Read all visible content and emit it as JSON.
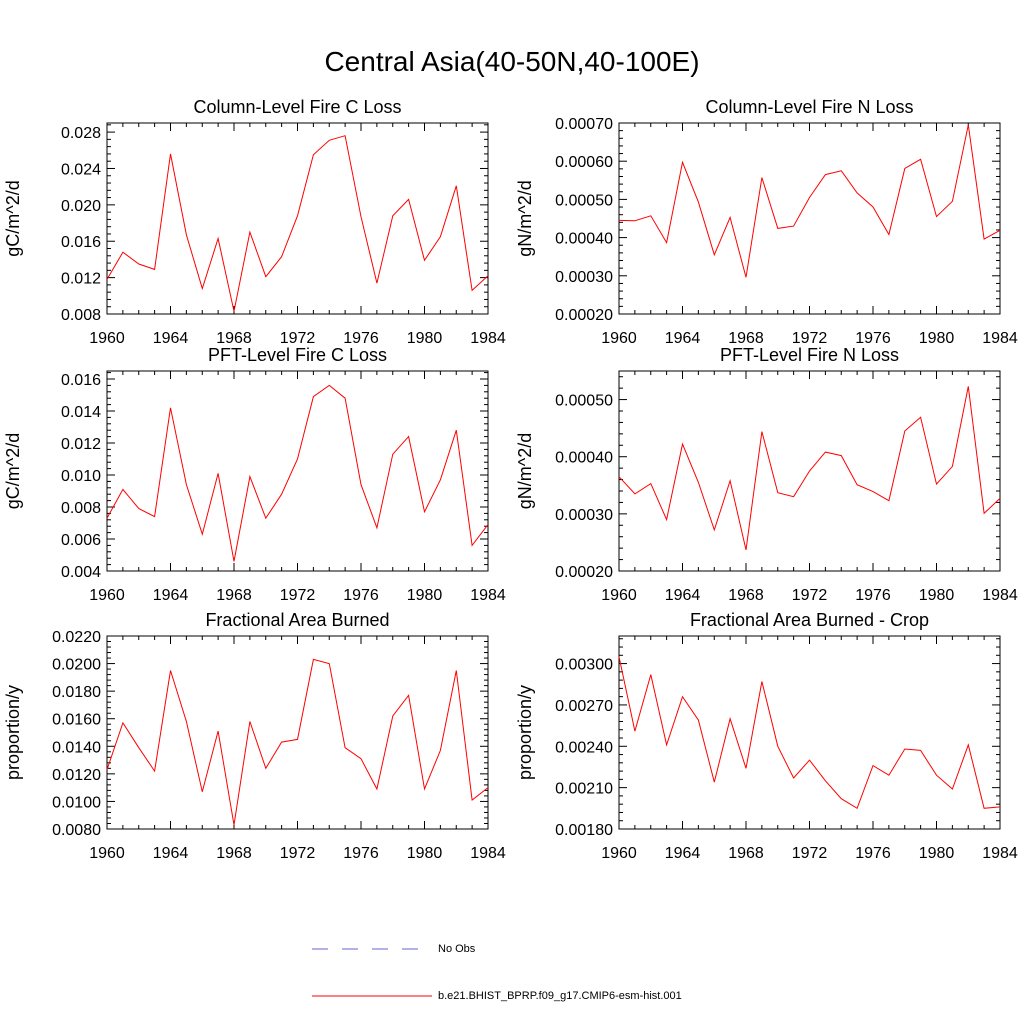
{
  "page": {
    "title": "Central Asia(40-50N,40-100E)"
  },
  "legend": {
    "items": [
      {
        "label": "No Obs",
        "style": "dashed",
        "color": "#6666cc"
      },
      {
        "label": "b.e21.BHIST_BPRP.f09_g17.CMIP6-esm-hist.001",
        "style": "solid",
        "color": "#ff0000"
      }
    ]
  },
  "series_color": "#ff0000",
  "chart_data": [
    {
      "type": "line",
      "title": "Column-Level Fire C Loss",
      "xlabel": "",
      "ylabel": "gC/m^2/d",
      "xlim": [
        1960,
        1984
      ],
      "ylim": [
        0.008,
        0.029
      ],
      "xticks": [
        1960,
        1964,
        1968,
        1972,
        1976,
        1980,
        1984
      ],
      "yticks": [
        "0.008",
        "0.012",
        "0.016",
        "0.020",
        "0.024",
        "0.028"
      ],
      "x": [
        1960,
        1961,
        1962,
        1963,
        1964,
        1965,
        1966,
        1967,
        1968,
        1969,
        1970,
        1971,
        1972,
        1973,
        1974,
        1975,
        1976,
        1977,
        1978,
        1979,
        1980,
        1981,
        1982,
        1983,
        1984
      ],
      "series": [
        {
          "name": "b.e21.BHIST_BPRP.f09_g17.CMIP6-esm-hist.001",
          "values": [
            0.0118,
            0.0148,
            0.0135,
            0.0129,
            0.0256,
            0.0167,
            0.0108,
            0.0163,
            0.0083,
            0.017,
            0.0121,
            0.0143,
            0.0188,
            0.0255,
            0.0271,
            0.0276,
            0.0187,
            0.0114,
            0.0188,
            0.0206,
            0.0139,
            0.0165,
            0.0221,
            0.0106,
            0.0122
          ]
        }
      ]
    },
    {
      "type": "line",
      "title": "Column-Level Fire N Loss",
      "xlabel": "",
      "ylabel": "gN/m^2/d",
      "xlim": [
        1960,
        1984
      ],
      "ylim": [
        0.0002,
        0.0007
      ],
      "xticks": [
        1960,
        1964,
        1968,
        1972,
        1976,
        1980,
        1984
      ],
      "yticks": [
        "0.00020",
        "0.00030",
        "0.00040",
        "0.00050",
        "0.00060",
        "0.00070"
      ],
      "x": [
        1960,
        1961,
        1962,
        1963,
        1964,
        1965,
        1966,
        1967,
        1968,
        1969,
        1970,
        1971,
        1972,
        1973,
        1974,
        1975,
        1976,
        1977,
        1978,
        1979,
        1980,
        1981,
        1982,
        1983,
        1984
      ],
      "series": [
        {
          "name": "b.e21.BHIST_BPRP.f09_g17.CMIP6-esm-hist.001",
          "values": [
            0.000445,
            0.000444,
            0.000457,
            0.000387,
            0.000597,
            0.000493,
            0.000355,
            0.000453,
            0.000296,
            0.000557,
            0.000424,
            0.00043,
            0.000505,
            0.000565,
            0.000575,
            0.000517,
            0.00048,
            0.000408,
            0.000581,
            0.000605,
            0.000455,
            0.000495,
            0.000695,
            0.000396,
            0.000419
          ]
        }
      ]
    },
    {
      "type": "line",
      "title": "PFT-Level Fire C Loss",
      "xlabel": "",
      "ylabel": "gC/m^2/d",
      "xlim": [
        1960,
        1984
      ],
      "ylim": [
        0.004,
        0.0165
      ],
      "xticks": [
        1960,
        1964,
        1968,
        1972,
        1976,
        1980,
        1984
      ],
      "yticks": [
        "0.004",
        "0.006",
        "0.008",
        "0.010",
        "0.012",
        "0.014",
        "0.016"
      ],
      "x": [
        1960,
        1961,
        1962,
        1963,
        1964,
        1965,
        1966,
        1967,
        1968,
        1969,
        1970,
        1971,
        1972,
        1973,
        1974,
        1975,
        1976,
        1977,
        1978,
        1979,
        1980,
        1981,
        1982,
        1983,
        1984
      ],
      "series": [
        {
          "name": "b.e21.BHIST_BPRP.f09_g17.CMIP6-esm-hist.001",
          "values": [
            0.0073,
            0.0091,
            0.0079,
            0.0074,
            0.0142,
            0.0094,
            0.0063,
            0.0101,
            0.0046,
            0.0099,
            0.0073,
            0.0088,
            0.011,
            0.0149,
            0.0156,
            0.0148,
            0.0094,
            0.0067,
            0.0113,
            0.0124,
            0.0077,
            0.0097,
            0.0128,
            0.0056,
            0.0069
          ]
        }
      ]
    },
    {
      "type": "line",
      "title": "PFT-Level Fire N Loss",
      "xlabel": "",
      "ylabel": "gN/m^2/d",
      "xlim": [
        1960,
        1984
      ],
      "ylim": [
        0.0002,
        0.00055
      ],
      "xticks": [
        1960,
        1964,
        1968,
        1972,
        1976,
        1980,
        1984
      ],
      "yticks": [
        "0.00020",
        "0.00030",
        "0.00040",
        "0.00050"
      ],
      "x": [
        1960,
        1961,
        1962,
        1963,
        1964,
        1965,
        1966,
        1967,
        1968,
        1969,
        1970,
        1971,
        1972,
        1973,
        1974,
        1975,
        1976,
        1977,
        1978,
        1979,
        1980,
        1981,
        1982,
        1983,
        1984
      ],
      "series": [
        {
          "name": "b.e21.BHIST_BPRP.f09_g17.CMIP6-esm-hist.001",
          "values": [
            0.000365,
            0.000335,
            0.000353,
            0.00029,
            0.000422,
            0.000355,
            0.000272,
            0.000358,
            0.000237,
            0.000444,
            0.000337,
            0.00033,
            0.000375,
            0.000408,
            0.000402,
            0.000351,
            0.000339,
            0.000323,
            0.000445,
            0.000469,
            0.000352,
            0.000383,
            0.000523,
            0.000301,
            0.000327
          ]
        }
      ]
    },
    {
      "type": "line",
      "title": "Fractional Area Burned",
      "xlabel": "",
      "ylabel": "proportion/y",
      "xlim": [
        1960,
        1984
      ],
      "ylim": [
        0.008,
        0.022
      ],
      "xticks": [
        1960,
        1964,
        1968,
        1972,
        1976,
        1980,
        1984
      ],
      "yticks": [
        "0.0080",
        "0.0100",
        "0.0120",
        "0.0140",
        "0.0160",
        "0.0180",
        "0.0200",
        "0.0220"
      ],
      "x": [
        1960,
        1961,
        1962,
        1963,
        1964,
        1965,
        1966,
        1967,
        1968,
        1969,
        1970,
        1971,
        1972,
        1973,
        1974,
        1975,
        1976,
        1977,
        1978,
        1979,
        1980,
        1981,
        1982,
        1983,
        1984
      ],
      "series": [
        {
          "name": "b.e21.BHIST_BPRP.f09_g17.CMIP6-esm-hist.001",
          "values": [
            0.0123,
            0.0157,
            0.0139,
            0.0122,
            0.0195,
            0.0158,
            0.0107,
            0.0151,
            0.0083,
            0.0158,
            0.0124,
            0.0143,
            0.0145,
            0.0203,
            0.02,
            0.0139,
            0.0131,
            0.0109,
            0.0162,
            0.0177,
            0.0109,
            0.0137,
            0.0195,
            0.0101,
            0.011
          ]
        }
      ]
    },
    {
      "type": "line",
      "title": "Fractional Area Burned - Crop",
      "xlabel": "",
      "ylabel": "proportion/y",
      "xlim": [
        1960,
        1984
      ],
      "ylim": [
        0.0018,
        0.0032
      ],
      "xticks": [
        1960,
        1964,
        1968,
        1972,
        1976,
        1980,
        1984
      ],
      "yticks": [
        "0.00180",
        "0.00210",
        "0.00240",
        "0.00270",
        "0.00300"
      ],
      "x": [
        1960,
        1961,
        1962,
        1963,
        1964,
        1965,
        1966,
        1967,
        1968,
        1969,
        1970,
        1971,
        1972,
        1973,
        1974,
        1975,
        1976,
        1977,
        1978,
        1979,
        1980,
        1981,
        1982,
        1983,
        1984
      ],
      "series": [
        {
          "name": "b.e21.BHIST_BPRP.f09_g17.CMIP6-esm-hist.001",
          "values": [
            0.00305,
            0.00251,
            0.00292,
            0.00241,
            0.00276,
            0.00259,
            0.00214,
            0.0026,
            0.00224,
            0.00287,
            0.0024,
            0.00217,
            0.0023,
            0.00215,
            0.00202,
            0.00195,
            0.00226,
            0.00219,
            0.00238,
            0.00237,
            0.00219,
            0.00209,
            0.00241,
            0.00195,
            0.00196
          ]
        }
      ]
    }
  ]
}
